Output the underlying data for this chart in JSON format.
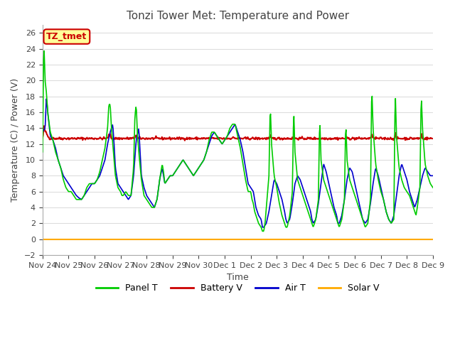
{
  "title": "Tonzi Tower Met: Temperature and Power",
  "xlabel": "Time",
  "ylabel": "Temperature (C) / Power (V)",
  "ylim": [
    -2,
    27
  ],
  "yticks": [
    -2,
    0,
    2,
    4,
    6,
    8,
    10,
    12,
    14,
    16,
    18,
    20,
    22,
    24,
    26
  ],
  "x_tick_labels": [
    "Nov 24",
    "Nov 25",
    "Nov 26",
    "Nov 27",
    "Nov 28",
    "Nov 29",
    "Nov 30",
    "Dec 1",
    "Dec 2",
    "Dec 3",
    "Dec 4",
    "Dec 5",
    "Dec 6",
    "Dec 7",
    "Dec 8",
    "Dec 9"
  ],
  "colors": {
    "panel_t": "#00CC00",
    "battery_v": "#CC0000",
    "air_t": "#0000CC",
    "solar_v": "#FFAA00"
  },
  "legend_labels": [
    "Panel T",
    "Battery V",
    "Air T",
    "Solar V"
  ],
  "annotation_text": "TZ_tmet",
  "annotation_bg": "#FFFF99",
  "annotation_border": "#CC0000",
  "bg_color": "#FFFFFF",
  "grid_color": "#DDDDDD",
  "title_color": "#444444",
  "tick_color": "#444444"
}
